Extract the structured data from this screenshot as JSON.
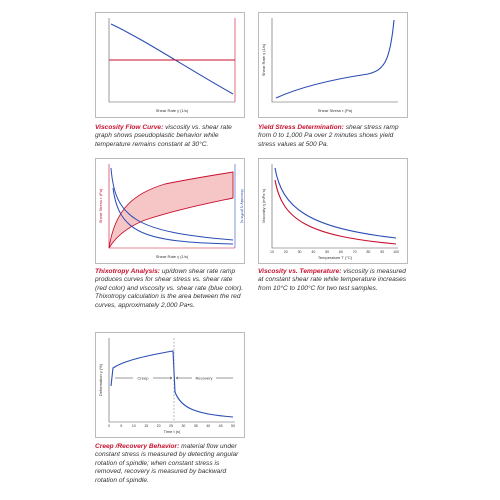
{
  "panels": [
    {
      "title": "Viscosity Flow Curve:",
      "description": "viscosity vs. shear rate graph shows pseudoplastic behavior while temperature remains constant at 30°C.",
      "x_label": "Shear Rate γ̇ (1/s)"
    },
    {
      "title": "Yield Stress Determination:",
      "description": "shear stress ramp from 0 to 1,000 Pa over 2 minutes shows yield stress values at 500 Pa.",
      "x_label": "Shear Stress τ (Pa)",
      "y_label": "Shear Rate γ̇ (1/s)"
    },
    {
      "title": "Thixotropy Analysis:",
      "description": "up/down shear rate ramp produces curves for shear stress vs. shear rate (red color) and viscosity vs. shear rate (blue color). Thixotropy calculation is the area between the red curves, approximately 2,000 Pa•s.",
      "x_label": "Shear Rate γ̇ (1/s)",
      "y_label": "Shear Stress τ (Pa)",
      "y2_label": "Viscosity η (mPa·s)"
    },
    {
      "title": "Viscosity vs. Temperature:",
      "description": "viscosity is measured at constant shear rate while temperature increases from 10°C to 100°C for two test samples.",
      "x_label": "Temperature T (°C)",
      "y_label": "Viscosity η (mPa·s)",
      "x_ticks": [
        10,
        20,
        30,
        40,
        50,
        60,
        70,
        80,
        90,
        100
      ]
    },
    {
      "title": "Creep /Recovery Behavior:",
      "description": "material flow under constant stress is measured by detecting angular rotation of spindle; when constant stress is removed, recovery is measured by backward rotation of spindle.",
      "x_label": "Time t (s)",
      "y_label": "Deformation γ (%)",
      "x_ticks": [
        0,
        5,
        10,
        15,
        20,
        25,
        30,
        35,
        40,
        45,
        50
      ],
      "annotations": [
        "Creep",
        "Recovery"
      ]
    }
  ]
}
